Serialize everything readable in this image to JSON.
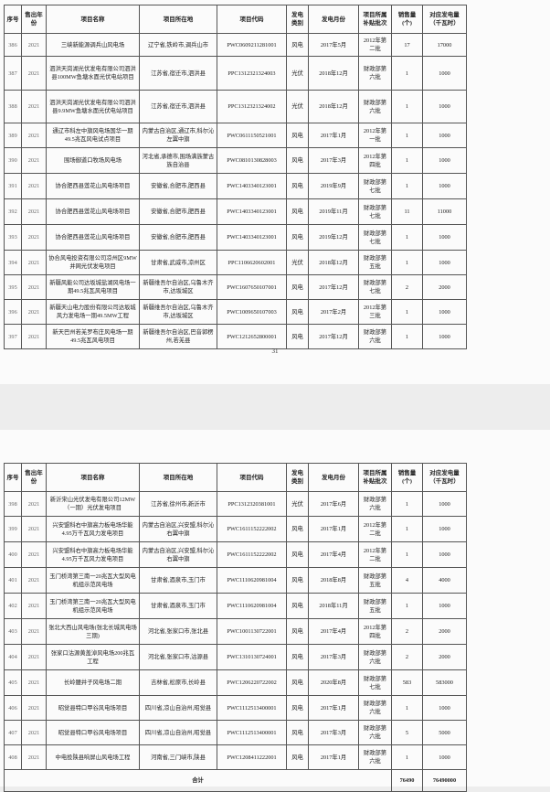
{
  "headers": [
    "序号",
    "售出年份",
    "项目名称",
    "项目所在地",
    "项目代码",
    "发电类别",
    "发电月份",
    "项目所属补贴批次",
    "销售量(个)",
    "对应发电量（千瓦时）"
  ],
  "page1": {
    "page_number": "31",
    "rows": [
      [
        "386",
        "2021",
        "三峡新能源调兵山风电场",
        "辽宁省,铁岭市,调兵山市",
        "PWC0609211281001",
        "风电",
        "2017年5月",
        "2012年第二批",
        "17",
        "17000"
      ],
      [
        "387",
        "2021",
        "泗洪天岗湖光伏发电有限公司泗洪县100MW鱼塘水面光伏电站项目",
        "江苏省,宿迁市,泗洪县",
        "PPC1312321324003",
        "光伏",
        "2018年12月",
        "财政部第六批",
        "1",
        "1000"
      ],
      [
        "388",
        "2021",
        "泗洪天岗湖光伏发电有限公司泗洪县9.9MW鱼塘水面光伏电站项目",
        "江苏省,宿迁市,泗洪县",
        "PPC1312321324002",
        "光伏",
        "2018年12月",
        "财政部第六批",
        "1",
        "1000"
      ],
      [
        "389",
        "2021",
        "通辽市科左中旗风电场国华一期49.5兆瓦风电试点项目",
        "内蒙古自治区,通辽市,科尔沁左翼中旗",
        "PWC0611150521001",
        "风电",
        "2017年1月",
        "2012年第一批",
        "1",
        "1000"
      ],
      [
        "390",
        "2021",
        "围场御道口牧场风电场",
        "河北省,承德市,围场满族蒙古族自治县",
        "PWC0810130828003",
        "风电",
        "2017年3月",
        "2012年第四批",
        "1",
        "1000"
      ],
      [
        "391",
        "2021",
        "协合肥西县莲花山风电场项目",
        "安徽省,合肥市,肥西县",
        "PWC1403340123001",
        "风电",
        "2019年9月",
        "财政部第七批",
        "1",
        "1000"
      ],
      [
        "392",
        "2021",
        "协合肥西县莲花山风电场项目",
        "安徽省,合肥市,肥西县",
        "PWC1403340123001",
        "风电",
        "2019年11月",
        "财政部第七批",
        "11",
        "11000"
      ],
      [
        "393",
        "2021",
        "协合肥西县莲花山风电场项目",
        "安徽省,合肥市,肥西县",
        "PWC1403340123001",
        "风电",
        "2019年12月",
        "财政部第七批",
        "1",
        "1000"
      ],
      [
        "394",
        "2021",
        "协合风电投资有限公司凉州区9MW并网光伏发电项目",
        "甘肃省,武威市,凉州区",
        "PPC1106620602001",
        "光伏",
        "2018年12月",
        "财政部第五批",
        "1",
        "1000"
      ],
      [
        "395",
        "2021",
        "新疆风能公司达坂城盐湖风电场一期49.5兆瓦风电项目",
        "新疆维吾尔自治区,乌鲁木齐市,达坂城区",
        "PWC1607650107001",
        "风电",
        "2017年12月",
        "财政部第七批",
        "2",
        "2000"
      ],
      [
        "396",
        "2021",
        "新疆天山电力股份有限公司达坂城风力发电场一期49.5MW工程",
        "新疆维吾尔自治区,乌鲁木齐市,达坂城区",
        "PWC1009650107003",
        "风电",
        "2017年2月",
        "2012年第三批",
        "1",
        "1000"
      ],
      [
        "397",
        "2021",
        "新天巴州若羌罗布庄风电场一期49.5兆瓦风电项目",
        "新疆维吾尔自治区,巴音郭楞州,若羌县",
        "PWC1212652800001",
        "风电",
        "2017年12月",
        "财政部第六批",
        "1",
        "1000"
      ]
    ]
  },
  "page2": {
    "rows": [
      [
        "398",
        "2021",
        "新沂宋山光伏发电有限公司12MW（一期）光伏发电项目",
        "江苏省,徐州市,新沂市",
        "PPC1312320381001",
        "光伏",
        "2017年6月",
        "财政部第六批",
        "1",
        "1000"
      ],
      [
        "399",
        "2021",
        "兴安盟科右中旗高力板电场华能4.95万千瓦风力发电项目",
        "内蒙古自治区,兴安盟,科尔沁右翼中旗",
        "PWC1611152222002",
        "风电",
        "2017年1月",
        "2012年第二批",
        "1",
        "1000"
      ],
      [
        "400",
        "2021",
        "兴安盟科右中旗高力板电场华能4.95万千瓦风力发电项目",
        "内蒙古自治区,兴安盟,科尔沁右翼中旗",
        "PWC1611152222002",
        "风电",
        "2017年4月",
        "2012年第二批",
        "1",
        "1000"
      ],
      [
        "401",
        "2021",
        "玉门桥湾第三南一20兆瓦大型风电机组示范风电场",
        "甘肃省,酒泉市,玉门市",
        "PWC1110620981004",
        "风电",
        "2018年8月",
        "财政部第五批",
        "4",
        "4000"
      ],
      [
        "402",
        "2021",
        "玉门桥湾第三南一20兆瓦大型风电机组示范风电场",
        "甘肃省,酒泉市,玉门市",
        "PWC1110620981004",
        "风电",
        "2018年11月",
        "财政部第五批",
        "1",
        "1000"
      ],
      [
        "403",
        "2021",
        "张北大西山风电场(张北长城风电场三期)",
        "河北省,张家口市,张北县",
        "PWC1001130722001",
        "风电",
        "2017年4月",
        "2012年第四批",
        "2",
        "2000"
      ],
      [
        "404",
        "2021",
        "张家口沽源黄盖淖风电场200兆瓦工程",
        "河北省,张家口市,沽源县",
        "PWC1310130724001",
        "风电",
        "2017年3月",
        "财政部第六批",
        "2",
        "2000"
      ],
      [
        "405",
        "2021",
        "长岭腰井子风电场二期",
        "吉林省,松原市,长岭县",
        "PWC1206220722002",
        "风电",
        "2020年8月",
        "财政部第七批",
        "583",
        "583000"
      ],
      [
        "406",
        "2021",
        "昭觉县特口甲谷风电场项目",
        "四川省,凉山自治州,昭觉县",
        "PWC1112513400001",
        "风电",
        "2017年1月",
        "财政部第六批",
        "1",
        "1000"
      ],
      [
        "407",
        "2021",
        "昭觉县特口甲谷风电场项目",
        "四川省,凉山自治州,昭觉县",
        "PWC1112513400001",
        "风电",
        "2017年3月",
        "财政部第六批",
        "5",
        "5000"
      ],
      [
        "408",
        "2021",
        "中电投陕县响屏山风电场工程",
        "河南省,三门峡市,陕县",
        "PWC1208411222001",
        "风电",
        "2017年1月",
        "财政部第六批",
        "1",
        "1000"
      ]
    ],
    "total": {
      "label": "合计",
      "quantity": "76490",
      "energy": "76490000"
    }
  }
}
